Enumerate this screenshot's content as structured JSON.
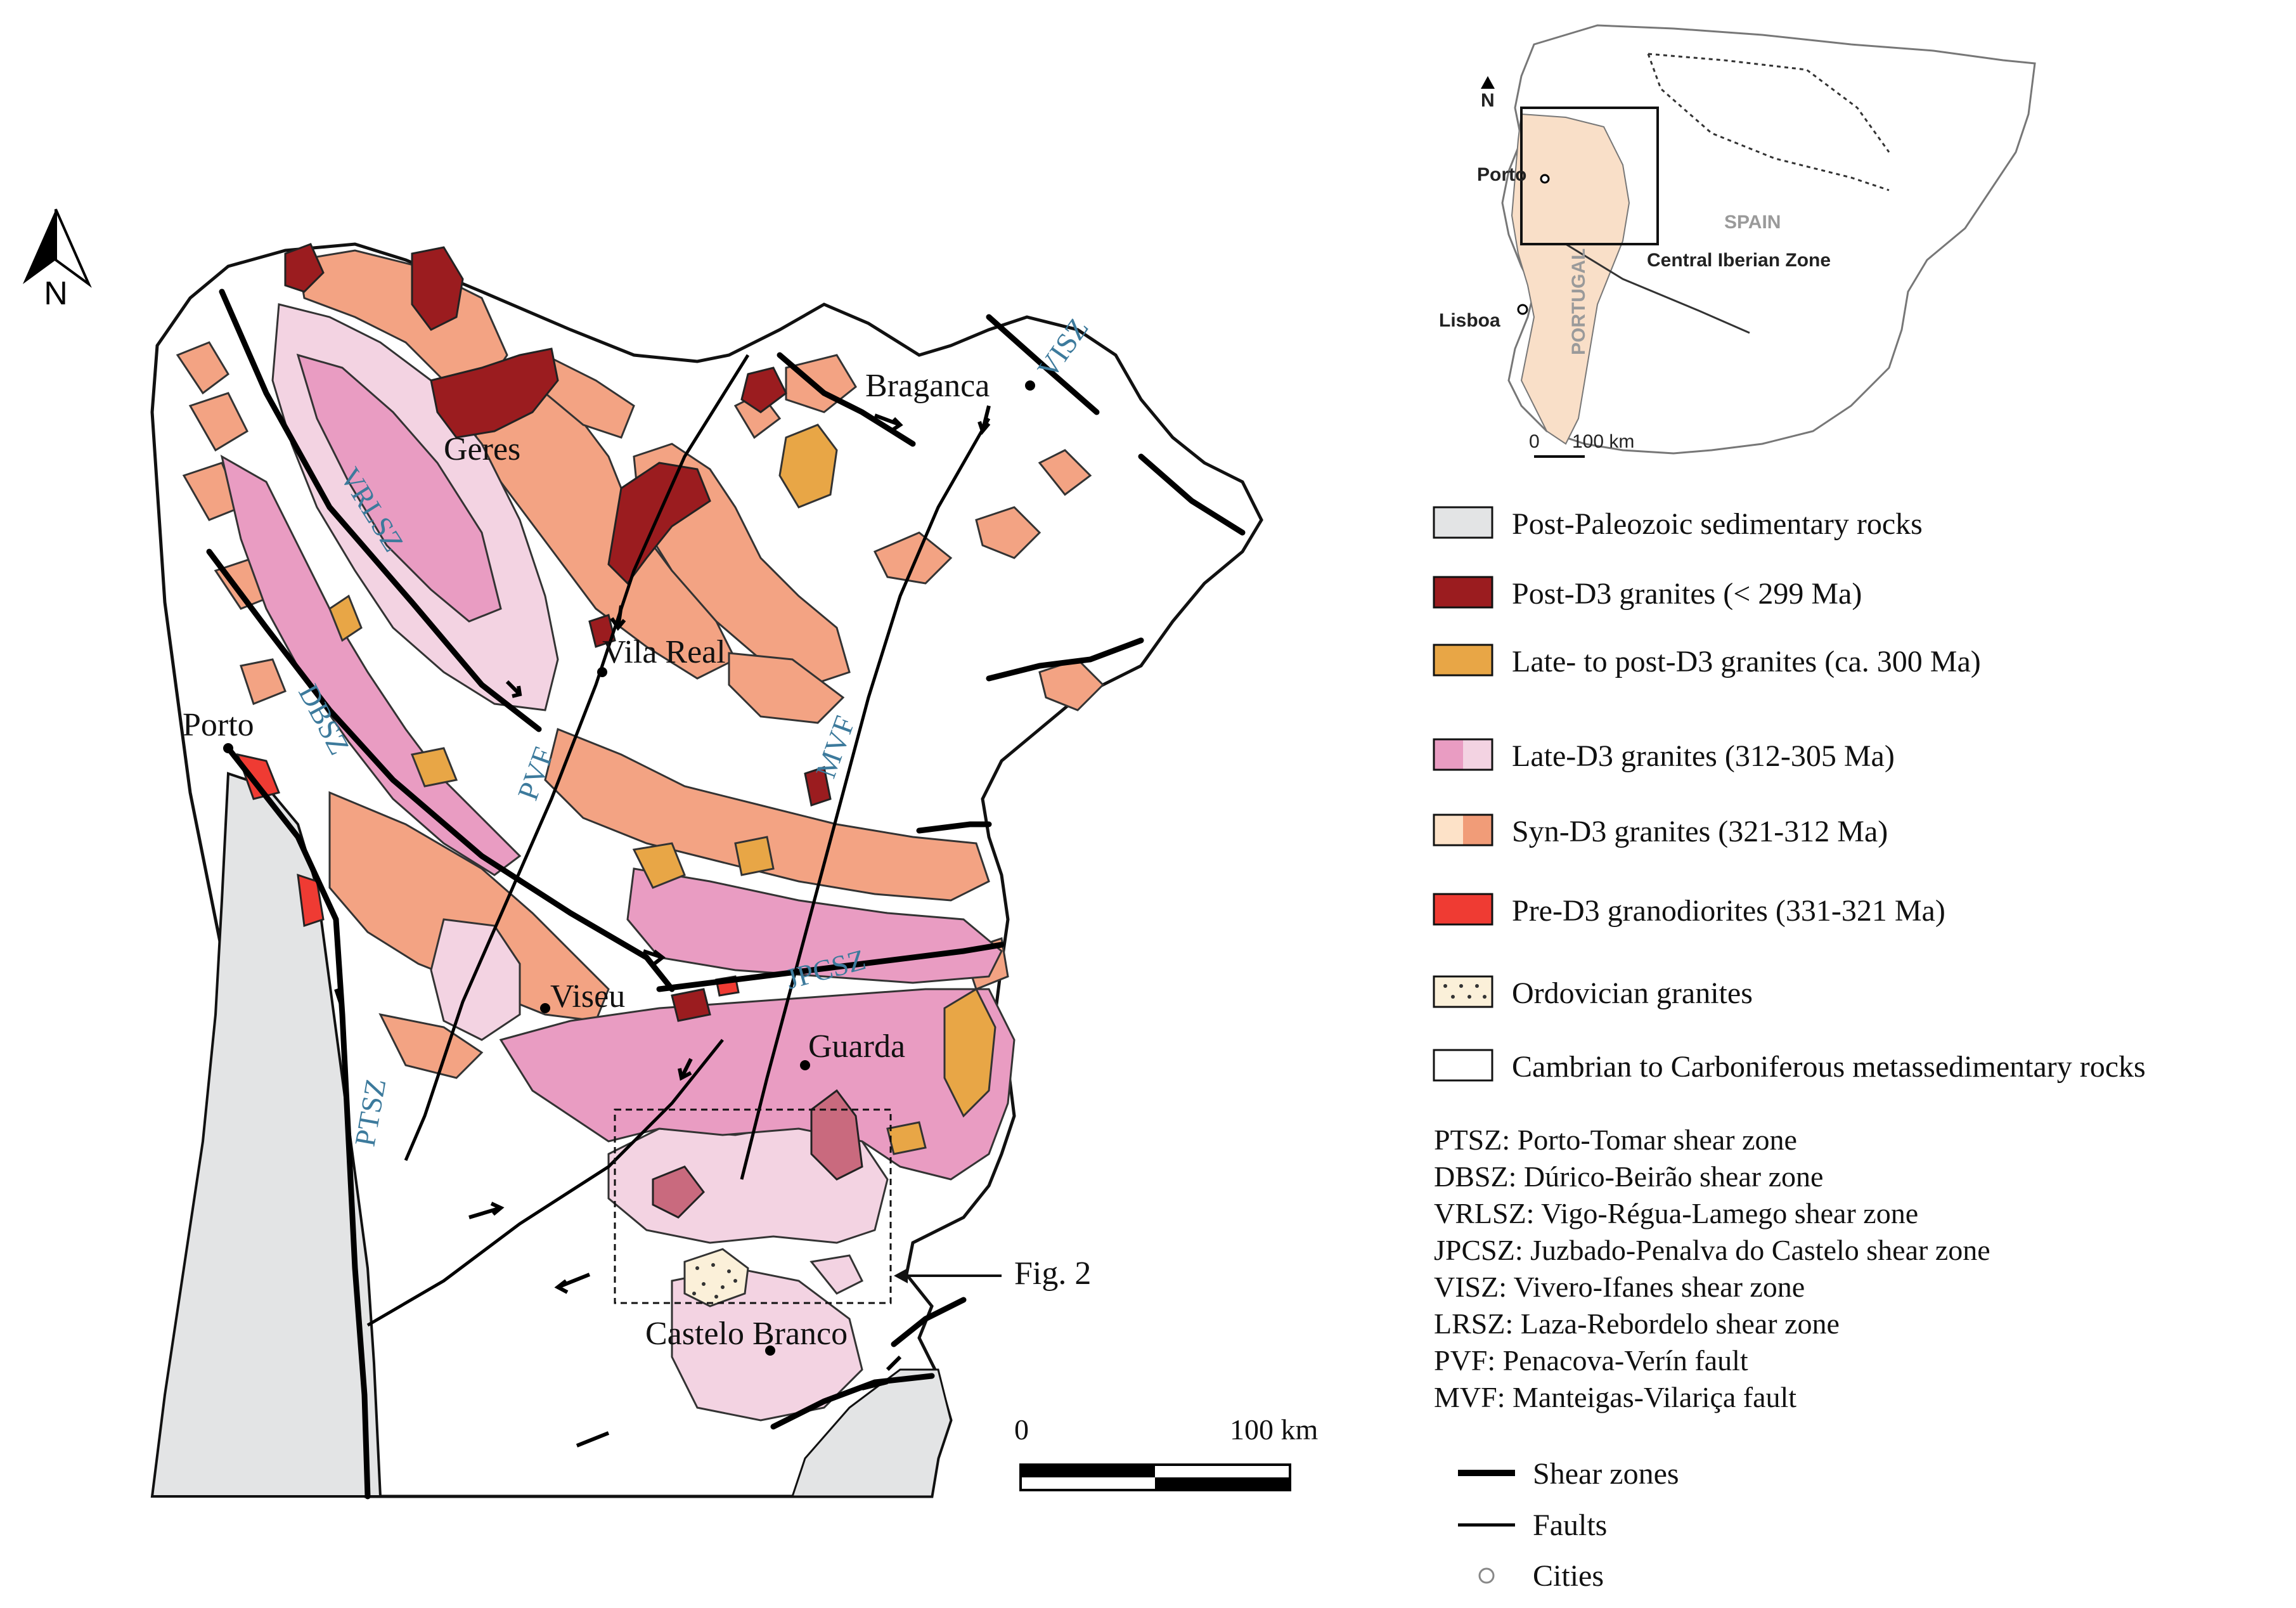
{
  "north_label": "N",
  "cities": [
    {
      "name": "Braganca"
    },
    {
      "name": "Geres"
    },
    {
      "name": "Vila Real"
    },
    {
      "name": "Porto"
    },
    {
      "name": "Viseu"
    },
    {
      "name": "Guarda"
    },
    {
      "name": "Castelo Branco"
    }
  ],
  "shear_zone_labels": [
    "VISZ",
    "VRLSZ",
    "DBSZ",
    "PVF",
    "MVF",
    "JPCSZ",
    "PTSZ"
  ],
  "fig_ref": "Fig. 2",
  "scale": {
    "start": "0",
    "end": "100 km"
  },
  "inset": {
    "north": "N",
    "porto": "Porto",
    "lisboa": "Lisboa",
    "portugal": "PORTUGAL",
    "spain": "SPAIN",
    "zone": "Central Iberian Zone",
    "scale_start": "0",
    "scale_end": "100 km"
  },
  "legend": [
    {
      "label": "Post-Paleozoic sedimentary rocks",
      "color": "#e3e4e5"
    },
    {
      "label": "Post-D3 granites (< 299 Ma)",
      "color": "#9b1c1f"
    },
    {
      "label": "Late- to post-D3 granites (ca. 300 Ma)",
      "color": "#e8a646"
    },
    {
      "label": "Late-D3 granites (312-305 Ma)",
      "color": "#e99cc2",
      "color2": "#f3d3e2"
    },
    {
      "label": "Syn-D3 granites (321-312 Ma)",
      "color": "#fde2c8",
      "color2": "#f19c78"
    },
    {
      "label": "Pre-D3 granodiorites (331-321 Ma)",
      "color": "#ef3b33"
    },
    {
      "label": "Ordovician granites",
      "color": "#fbf0d9"
    },
    {
      "label": "Cambrian to Carboniferous metassedimentary rocks",
      "color": "#ffffff"
    }
  ],
  "abbreviations": [
    "PTSZ: Porto-Tomar shear zone",
    "DBSZ: Dúrico-Beirão shear zone",
    "VRLSZ: Vigo-Régua-Lamego shear zone",
    "JPCSZ: Juzbado-Penalva do Castelo shear zone",
    "VISZ: Vivero-Ifanes shear zone",
    "LRSZ: Laza-Rebordelo shear zone",
    "PVF: Penacova-Verín fault",
    "MVF: Manteigas-Vilariça fault"
  ],
  "line_legend": {
    "shear": "Shear zones",
    "faults": "Faults",
    "cities": "Cities"
  }
}
